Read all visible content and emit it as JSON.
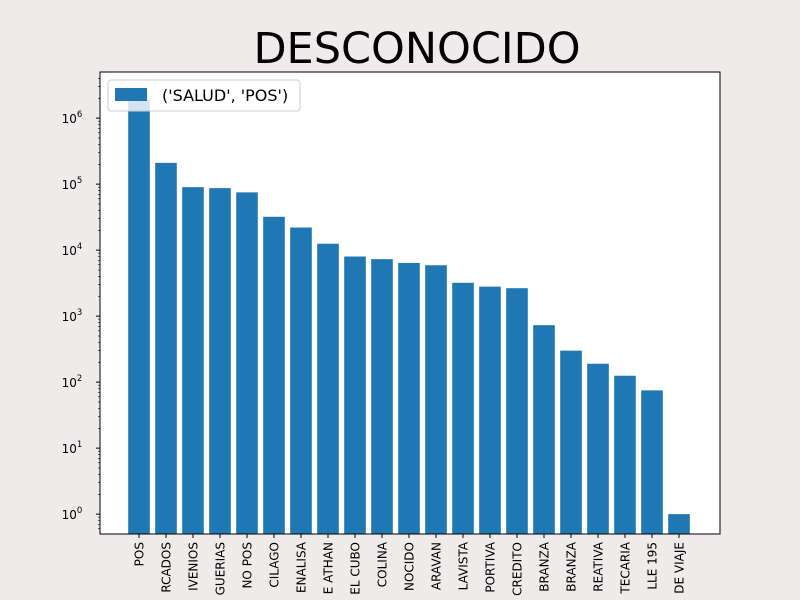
{
  "chart_data": {
    "type": "bar",
    "title": "DESCONOCIDO",
    "xlabel": "",
    "ylabel": "",
    "yscale": "log",
    "ylim": [
      0.5,
      5000000
    ],
    "grid": false,
    "legend_position": "upper-left",
    "colors": {
      "bar": "#1f77b4",
      "axes_face": "#ffffff",
      "figure_face": "#efebea",
      "text": "#000000"
    },
    "y_ticks": [
      {
        "value": 1,
        "base": "10",
        "exp": "0"
      },
      {
        "value": 10,
        "base": "10",
        "exp": "1"
      },
      {
        "value": 100,
        "base": "10",
        "exp": "2"
      },
      {
        "value": 1000,
        "base": "10",
        "exp": "3"
      },
      {
        "value": 10000,
        "base": "10",
        "exp": "4"
      },
      {
        "value": 100000,
        "base": "10",
        "exp": "5"
      },
      {
        "value": 1000000,
        "base": "10",
        "exp": "6"
      }
    ],
    "categories": [
      "POS",
      "RCADOS",
      "IVENIOS",
      "GUERIAS",
      "NO POS",
      "CILAGO",
      "ENALISA",
      "E ATHAN",
      "EL CUBO",
      "COLINA",
      "NOCIDO",
      "ARAVAN",
      "LAVISTA",
      "PORTIVA",
      "CREDITO",
      "BRANZA",
      "BRANZA",
      "REATIVA",
      "TECARIA",
      "LLE 195",
      "DE VIAJE"
    ],
    "series": [
      {
        "name": "('SALUD', 'POS')",
        "values": [
          1900000,
          210000,
          90000,
          87000,
          75000,
          32000,
          22000,
          12500,
          8000,
          7300,
          6400,
          5900,
          3200,
          2800,
          2650,
          730,
          300,
          190,
          125,
          75,
          1
        ]
      }
    ]
  }
}
